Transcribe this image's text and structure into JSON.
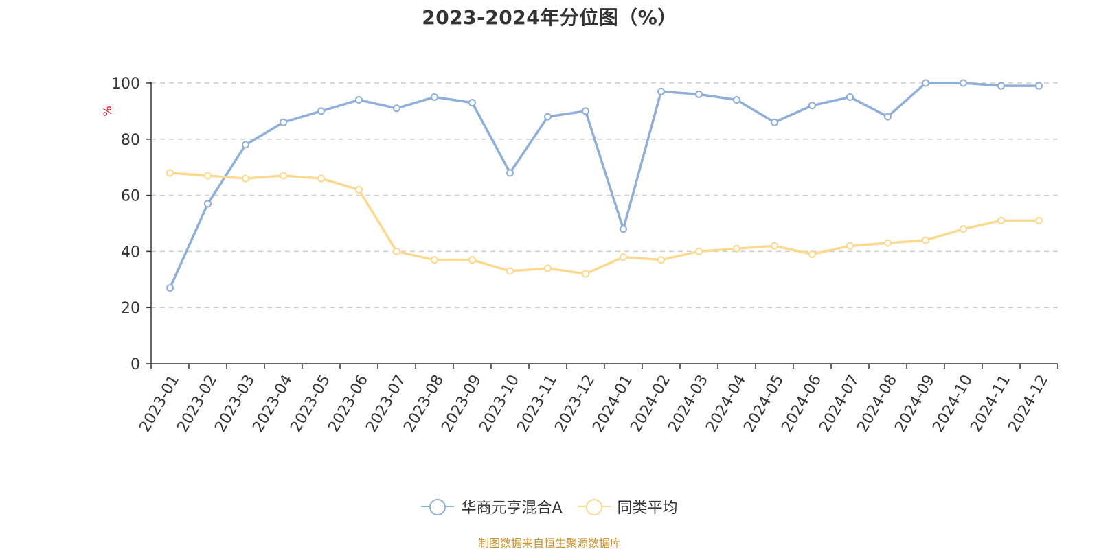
{
  "title": "2023-2024年分位图（%）",
  "source_note": "制图数据来自恒生聚源数据库",
  "colors": {
    "series_1": "#8FAED8",
    "series_2": "#FCD98E",
    "ylabel": "#e0000f",
    "grid": "#cccccc",
    "axis": "#333333",
    "source": "#c9902a"
  },
  "chart_data": {
    "type": "line",
    "title": "2023-2024年分位图（%）",
    "ylabel": "%",
    "xlabel": "",
    "ylim": [
      0,
      100
    ],
    "yticks": [
      0,
      20,
      40,
      60,
      80,
      100
    ],
    "grid": true,
    "legend_position": "bottom-center",
    "categories": [
      "2023-01",
      "2023-02",
      "2023-03",
      "2023-04",
      "2023-05",
      "2023-06",
      "2023-07",
      "2023-08",
      "2023-09",
      "2023-10",
      "2023-11",
      "2023-12",
      "2024-01",
      "2024-02",
      "2024-03",
      "2024-04",
      "2024-05",
      "2024-06",
      "2024-07",
      "2024-08",
      "2024-09",
      "2024-10",
      "2024-11",
      "2024-12"
    ],
    "series": [
      {
        "name": "华商元亨混合A",
        "color": "#8FAED8",
        "values": [
          27,
          57,
          78,
          86,
          90,
          94,
          91,
          95,
          93,
          68,
          88,
          90,
          48,
          97,
          96,
          94,
          86,
          92,
          95,
          88,
          100,
          100,
          99,
          99
        ]
      },
      {
        "name": "同类平均",
        "color": "#FCD98E",
        "values": [
          68,
          67,
          66,
          67,
          66,
          62,
          40,
          37,
          37,
          33,
          34,
          32,
          38,
          37,
          40,
          41,
          42,
          39,
          42,
          43,
          44,
          48,
          51,
          51
        ]
      }
    ]
  }
}
